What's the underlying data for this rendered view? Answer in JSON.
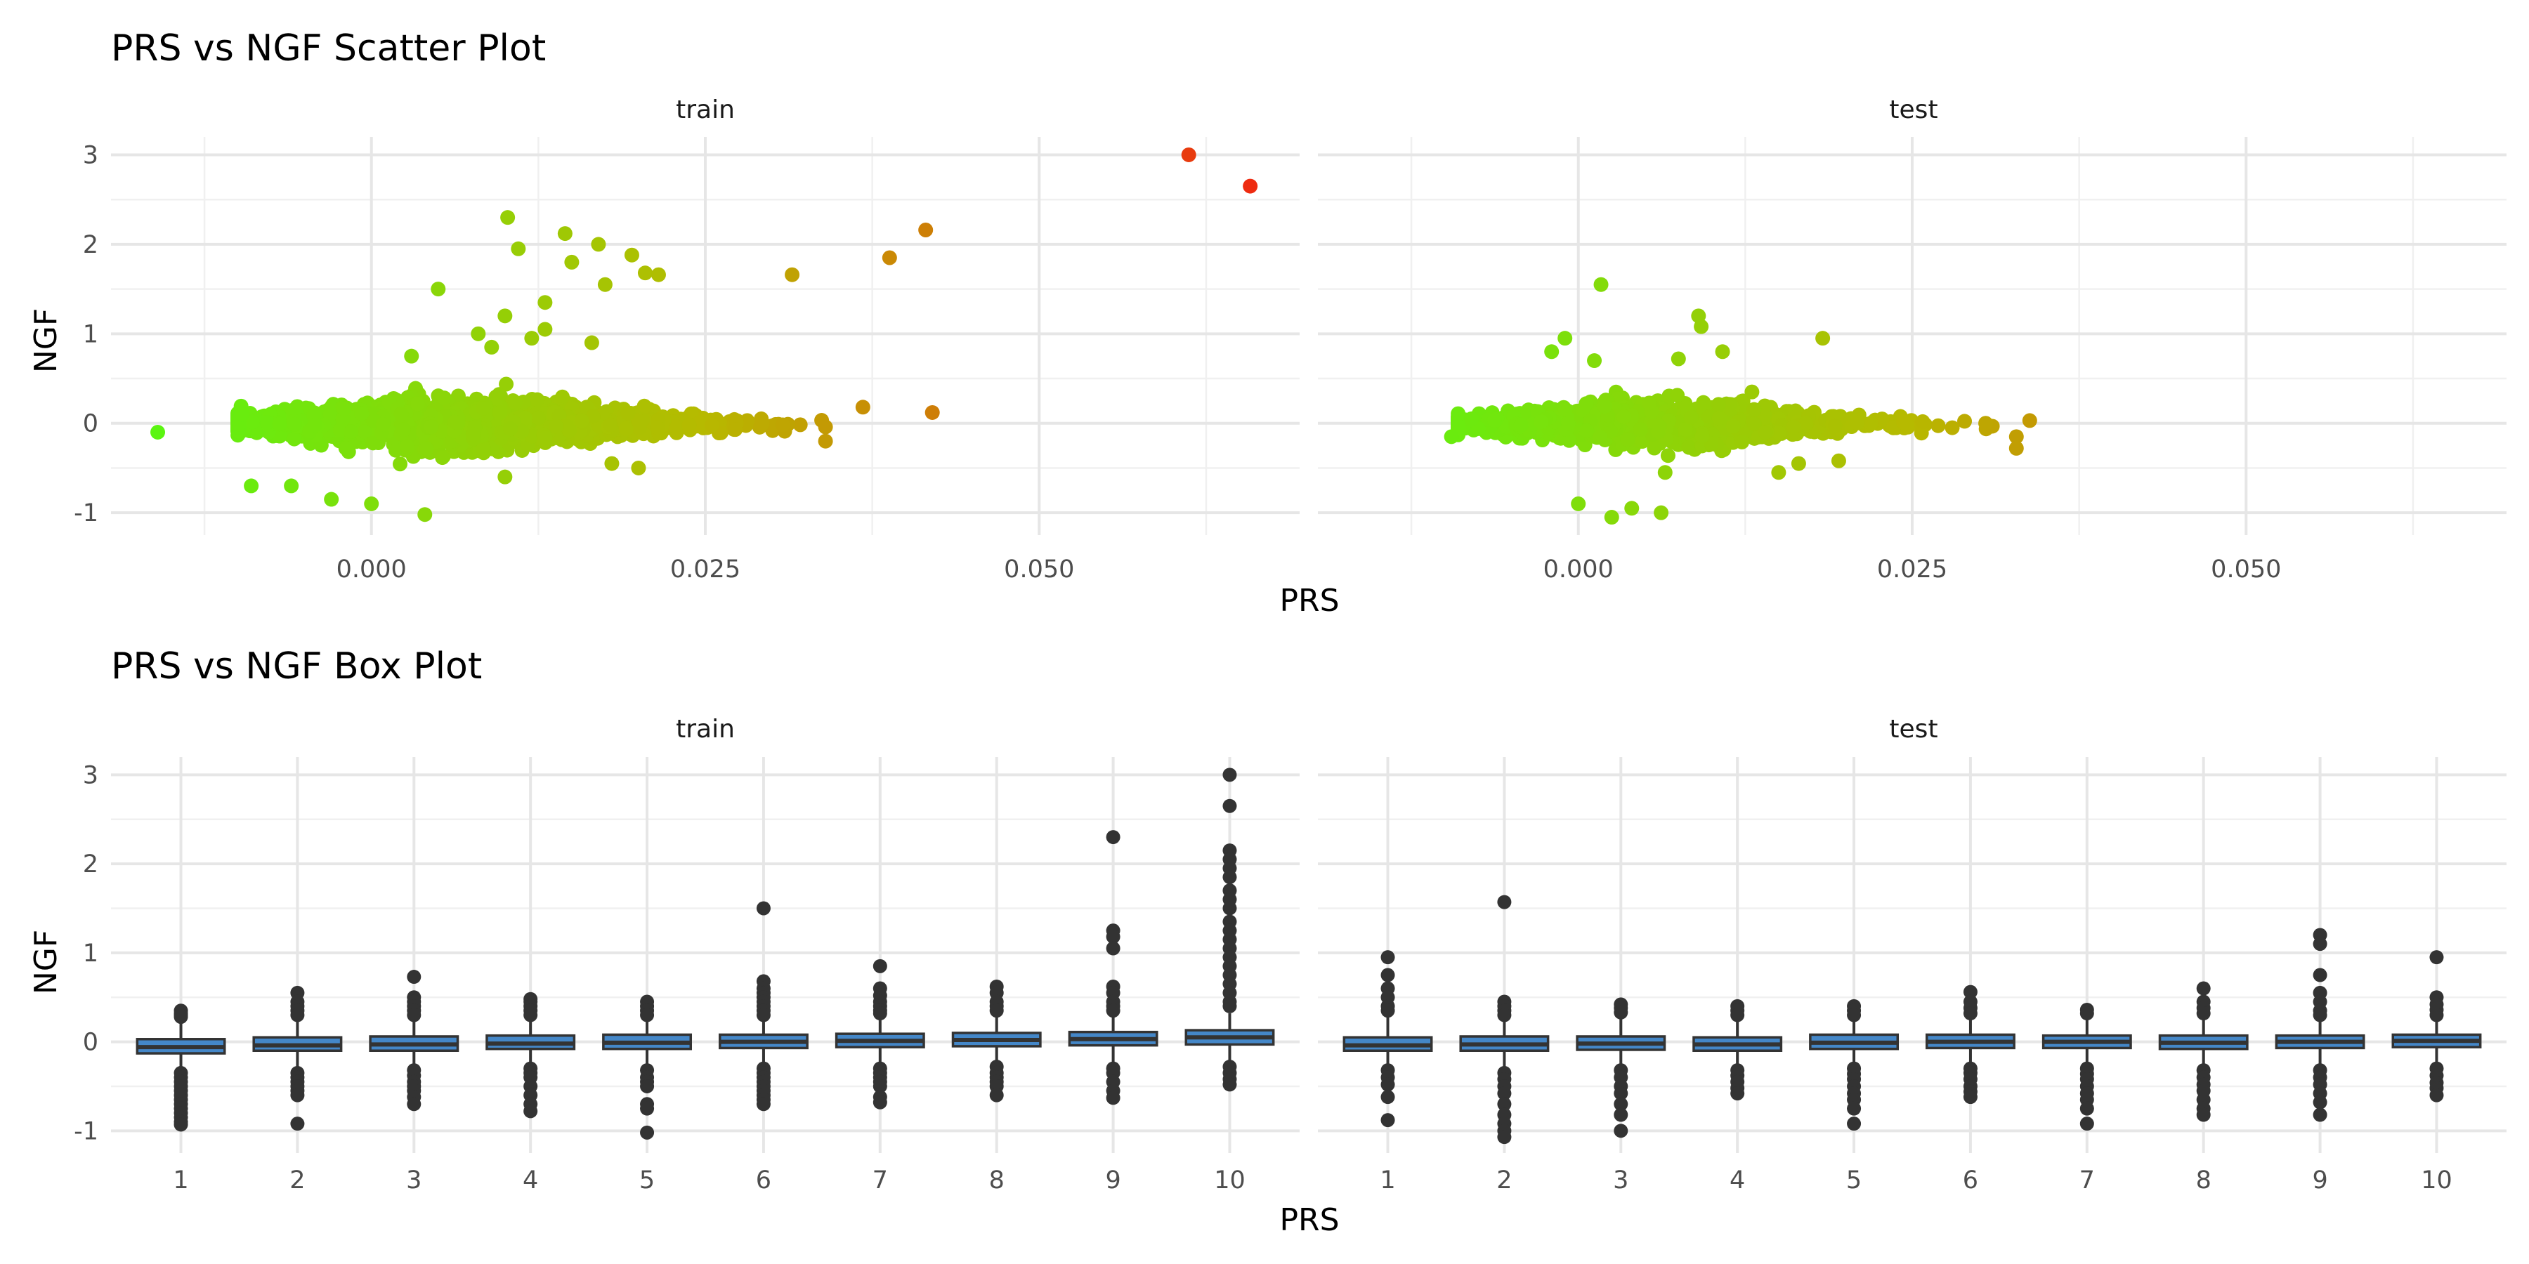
{
  "colors": {
    "low": "#5bf511",
    "mid": "#b7b900",
    "high": "#ee2a10",
    "box_fill": "#4487c8",
    "box_line": "#333333",
    "outlier": "#333333"
  },
  "chart_data": [
    {
      "type": "scatter",
      "title": "PRS vs NGF Scatter Plot",
      "xlabel": "PRS",
      "ylabel": "NGF",
      "xlim": [
        -0.0195,
        0.0695
      ],
      "ylim": [
        -1.25,
        3.2
      ],
      "xticks": [
        "0.000",
        "0.025",
        "0.050"
      ],
      "xtick_values": [
        0.0,
        0.025,
        0.05
      ],
      "yticks": [
        "-1",
        "0",
        "1",
        "2",
        "3"
      ],
      "ytick_values": [
        -1,
        0,
        1,
        2,
        3
      ],
      "color_by": "PRS",
      "grid": true,
      "legend": "none",
      "panels": [
        {
          "name": "train",
          "bulk": {
            "x_range": [
              -0.01,
              0.034
            ],
            "center_x": 0.007,
            "y_spread": 0.25
          },
          "points": [
            [
              -0.016,
              -0.1
            ],
            [
              -0.009,
              -0.7
            ],
            [
              -0.006,
              -0.7
            ],
            [
              -0.003,
              -0.85
            ],
            [
              0.0,
              -0.9
            ],
            [
              0.004,
              -1.02
            ],
            [
              0.003,
              0.75
            ],
            [
              0.005,
              1.5
            ],
            [
              0.009,
              0.85
            ],
            [
              0.008,
              1.0
            ],
            [
              0.01,
              1.2
            ],
            [
              0.0102,
              2.3
            ],
            [
              0.011,
              1.95
            ],
            [
              0.012,
              0.95
            ],
            [
              0.013,
              1.35
            ],
            [
              0.013,
              1.05
            ],
            [
              0.0145,
              2.12
            ],
            [
              0.015,
              1.8
            ],
            [
              0.0165,
              0.9
            ],
            [
              0.017,
              2.0
            ],
            [
              0.0175,
              1.55
            ],
            [
              0.0195,
              1.88
            ],
            [
              0.0205,
              1.68
            ],
            [
              0.0215,
              1.66
            ],
            [
              0.0315,
              1.66
            ],
            [
              0.0368,
              0.18
            ],
            [
              0.034,
              -0.2
            ],
            [
              0.0388,
              1.85
            ],
            [
              0.0415,
              2.16
            ],
            [
              0.042,
              0.12
            ],
            [
              0.0612,
              3.0
            ],
            [
              0.0658,
              2.65
            ],
            [
              0.018,
              -0.45
            ],
            [
              0.02,
              -0.5
            ],
            [
              0.01,
              -0.6
            ]
          ]
        },
        {
          "name": "test",
          "bulk": {
            "x_range": [
              -0.009,
              0.031
            ],
            "center_x": 0.006,
            "y_spread": 0.22
          },
          "points": [
            [
              -0.0095,
              -0.15
            ],
            [
              -0.008,
              0.05
            ],
            [
              -0.002,
              0.8
            ],
            [
              -0.001,
              0.95
            ],
            [
              0.0012,
              0.7
            ],
            [
              0.0017,
              1.55
            ],
            [
              0.0,
              -0.9
            ],
            [
              0.0025,
              -1.05
            ],
            [
              0.004,
              -0.95
            ],
            [
              0.0062,
              -1.0
            ],
            [
              0.0065,
              -0.55
            ],
            [
              0.009,
              1.2
            ],
            [
              0.0092,
              1.08
            ],
            [
              0.0075,
              0.72
            ],
            [
              0.0108,
              0.8
            ],
            [
              0.0183,
              0.95
            ],
            [
              0.013,
              0.35
            ],
            [
              0.015,
              -0.55
            ],
            [
              0.0165,
              -0.45
            ],
            [
              0.0195,
              -0.42
            ],
            [
              0.028,
              -0.05
            ],
            [
              0.0328,
              -0.15
            ],
            [
              0.0328,
              -0.28
            ],
            [
              0.0338,
              0.03
            ],
            [
              0.0305,
              0.0
            ]
          ]
        }
      ]
    },
    {
      "type": "box",
      "title": "PRS vs NGF Box Plot",
      "xlabel": "PRS",
      "ylabel": "NGF",
      "categories": [
        "1",
        "2",
        "3",
        "4",
        "5",
        "6",
        "7",
        "8",
        "9",
        "10"
      ],
      "ylim": [
        -1.25,
        3.2
      ],
      "yticks": [
        "-1",
        "0",
        "1",
        "2",
        "3"
      ],
      "ytick_values": [
        -1,
        0,
        1,
        2,
        3
      ],
      "grid": true,
      "panels": [
        {
          "name": "train",
          "boxes": [
            {
              "q1": -0.13,
              "median": -0.06,
              "q3": 0.03,
              "lo": -0.3,
              "hi": 0.25,
              "outliers": [
                0.35,
                0.32,
                0.3,
                0.28,
                -0.35,
                -0.4,
                -0.45,
                -0.5,
                -0.55,
                -0.6,
                -0.65,
                -0.7,
                -0.75,
                -0.8,
                -0.85,
                -0.9,
                -0.93
              ]
            },
            {
              "q1": -0.1,
              "median": -0.04,
              "q3": 0.05,
              "lo": -0.3,
              "hi": 0.25,
              "outliers": [
                0.55,
                0.45,
                0.4,
                0.35,
                0.3,
                -0.35,
                -0.4,
                -0.45,
                -0.5,
                -0.55,
                -0.6,
                -0.92
              ]
            },
            {
              "q1": -0.1,
              "median": -0.03,
              "q3": 0.06,
              "lo": -0.28,
              "hi": 0.26,
              "outliers": [
                0.73,
                0.5,
                0.45,
                0.4,
                0.35,
                0.3,
                -0.32,
                -0.38,
                -0.45,
                -0.5,
                -0.55,
                -0.62,
                -0.7
              ]
            },
            {
              "q1": -0.08,
              "median": -0.02,
              "q3": 0.07,
              "lo": -0.28,
              "hi": 0.27,
              "outliers": [
                0.48,
                0.45,
                0.4,
                0.35,
                0.3,
                -0.3,
                -0.35,
                -0.4,
                -0.5,
                -0.6,
                -0.7,
                -0.78
              ]
            },
            {
              "q1": -0.08,
              "median": -0.01,
              "q3": 0.08,
              "lo": -0.27,
              "hi": 0.27,
              "outliers": [
                0.45,
                0.4,
                0.35,
                0.3,
                -0.32,
                -0.4,
                -0.45,
                -0.5,
                -0.7,
                -0.75,
                -1.02
              ]
            },
            {
              "q1": -0.07,
              "median": 0.0,
              "q3": 0.08,
              "lo": -0.27,
              "hi": 0.27,
              "outliers": [
                1.5,
                0.68,
                0.6,
                0.55,
                0.5,
                0.45,
                0.4,
                0.35,
                0.3,
                -0.3,
                -0.35,
                -0.4,
                -0.45,
                -0.5,
                -0.55,
                -0.6,
                -0.65,
                -0.7
              ]
            },
            {
              "q1": -0.06,
              "median": 0.01,
              "q3": 0.09,
              "lo": -0.26,
              "hi": 0.28,
              "outliers": [
                0.85,
                0.6,
                0.52,
                0.45,
                0.4,
                0.35,
                0.32,
                -0.3,
                -0.35,
                -0.4,
                -0.45,
                -0.5,
                -0.62,
                -0.68
              ]
            },
            {
              "q1": -0.05,
              "median": 0.02,
              "q3": 0.1,
              "lo": -0.25,
              "hi": 0.29,
              "outliers": [
                0.62,
                0.55,
                0.45,
                0.4,
                0.35,
                -0.28,
                -0.35,
                -0.4,
                -0.45,
                -0.5,
                -0.6
              ]
            },
            {
              "q1": -0.04,
              "median": 0.03,
              "q3": 0.11,
              "lo": -0.25,
              "hi": 0.3,
              "outliers": [
                2.3,
                1.25,
                1.18,
                1.05,
                0.62,
                0.55,
                0.45,
                0.4,
                0.35,
                -0.3,
                -0.35,
                -0.45,
                -0.55,
                -0.63
              ]
            },
            {
              "q1": -0.03,
              "median": 0.05,
              "q3": 0.13,
              "lo": -0.22,
              "hi": 0.32,
              "outliers": [
                3.0,
                2.65,
                2.15,
                2.05,
                1.95,
                1.85,
                1.7,
                1.6,
                1.5,
                1.35,
                1.25,
                1.15,
                1.05,
                0.95,
                0.85,
                0.75,
                0.65,
                0.55,
                0.45,
                0.4,
                -0.28,
                -0.35,
                -0.42,
                -0.48
              ]
            }
          ]
        },
        {
          "name": "test",
          "boxes": [
            {
              "q1": -0.1,
              "median": -0.04,
              "q3": 0.05,
              "lo": -0.28,
              "hi": 0.28,
              "outliers": [
                0.95,
                0.75,
                0.6,
                0.5,
                0.4,
                0.35,
                -0.32,
                -0.4,
                -0.48,
                -0.62,
                -0.88
              ]
            },
            {
              "q1": -0.1,
              "median": -0.03,
              "q3": 0.06,
              "lo": -0.28,
              "hi": 0.27,
              "outliers": [
                1.57,
                0.45,
                0.4,
                0.35,
                0.3,
                -0.35,
                -0.42,
                -0.5,
                -0.58,
                -0.7,
                -0.82,
                -0.92,
                -1.0,
                -1.07
              ]
            },
            {
              "q1": -0.09,
              "median": -0.02,
              "q3": 0.06,
              "lo": -0.27,
              "hi": 0.27,
              "outliers": [
                0.42,
                0.38,
                0.33,
                -0.32,
                -0.4,
                -0.5,
                -0.58,
                -0.7,
                -0.82,
                -1.0
              ]
            },
            {
              "q1": -0.1,
              "median": -0.03,
              "q3": 0.05,
              "lo": -0.27,
              "hi": 0.26,
              "outliers": [
                0.4,
                0.35,
                0.3,
                -0.32,
                -0.38,
                -0.45,
                -0.52,
                -0.58
              ]
            },
            {
              "q1": -0.08,
              "median": -0.01,
              "q3": 0.08,
              "lo": -0.27,
              "hi": 0.27,
              "outliers": [
                0.4,
                0.35,
                0.3,
                -0.3,
                -0.36,
                -0.42,
                -0.5,
                -0.58,
                -0.65,
                -0.75,
                -0.92
              ]
            },
            {
              "q1": -0.07,
              "median": 0.0,
              "q3": 0.08,
              "lo": -0.26,
              "hi": 0.27,
              "outliers": [
                0.56,
                0.45,
                0.38,
                0.32,
                -0.3,
                -0.35,
                -0.42,
                -0.5,
                -0.56,
                -0.62
              ]
            },
            {
              "q1": -0.07,
              "median": 0.0,
              "q3": 0.07,
              "lo": -0.26,
              "hi": 0.26,
              "outliers": [
                0.36,
                0.32,
                -0.3,
                -0.36,
                -0.42,
                -0.5,
                -0.58,
                -0.65,
                -0.75,
                -0.92
              ]
            },
            {
              "q1": -0.08,
              "median": -0.01,
              "q3": 0.07,
              "lo": -0.27,
              "hi": 0.27,
              "outliers": [
                0.6,
                0.45,
                0.38,
                0.32,
                -0.32,
                -0.4,
                -0.48,
                -0.55,
                -0.65,
                -0.75,
                -0.82
              ]
            },
            {
              "q1": -0.07,
              "median": 0.0,
              "q3": 0.07,
              "lo": -0.26,
              "hi": 0.27,
              "outliers": [
                1.2,
                1.1,
                0.75,
                0.55,
                0.45,
                0.35,
                0.3,
                -0.32,
                -0.4,
                -0.48,
                -0.58,
                -0.68,
                -0.82
              ]
            },
            {
              "q1": -0.06,
              "median": 0.01,
              "q3": 0.08,
              "lo": -0.25,
              "hi": 0.28,
              "outliers": [
                0.95,
                0.5,
                0.42,
                0.36,
                0.3,
                -0.3,
                -0.38,
                -0.46,
                -0.52,
                -0.6
              ]
            }
          ]
        }
      ]
    }
  ]
}
